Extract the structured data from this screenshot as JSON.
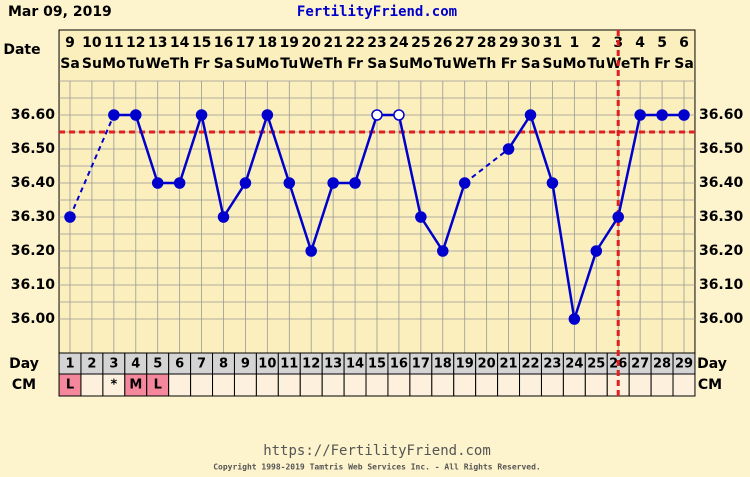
{
  "header": "Mar 09, 2019",
  "site": "FertilityFriend.com",
  "footer_url": "https://FertilityFriend.com",
  "copyright": "Copyright 1998-2019 Tamtris Web Services Inc. - All Rights Reserved.",
  "chart_data": {
    "type": "line",
    "date_label": "Date",
    "day_label": "Day",
    "cm_label": "CM",
    "dates": [
      "9",
      "10",
      "11",
      "12",
      "13",
      "14",
      "15",
      "16",
      "17",
      "18",
      "19",
      "20",
      "21",
      "22",
      "23",
      "24",
      "25",
      "26",
      "27",
      "28",
      "29",
      "30",
      "31",
      "1",
      "2",
      "3",
      "4",
      "5",
      "6"
    ],
    "weekdays": [
      "Sa",
      "Su",
      "Mo",
      "Tu",
      "We",
      "Th",
      "Fr",
      "Sa",
      "Su",
      "Mo",
      "Tu",
      "We",
      "Th",
      "Fr",
      "Sa",
      "Su",
      "Mo",
      "Tu",
      "We",
      "Th",
      "Fr",
      "Sa",
      "Su",
      "Mo",
      "Tu",
      "We",
      "Th",
      "Fr",
      "Sa"
    ],
    "days": [
      1,
      2,
      3,
      4,
      5,
      6,
      7,
      8,
      9,
      10,
      11,
      12,
      13,
      14,
      15,
      16,
      17,
      18,
      19,
      20,
      21,
      22,
      23,
      24,
      25,
      26,
      27,
      28,
      29
    ],
    "cm": [
      "L",
      null,
      "*",
      "M",
      "L",
      null,
      null,
      null,
      null,
      null,
      null,
      null,
      null,
      null,
      null,
      null,
      null,
      null,
      null,
      null,
      null,
      null,
      null,
      null,
      null,
      null,
      null,
      null,
      null
    ],
    "cm_color": "#f4879b",
    "values": [
      36.3,
      null,
      36.6,
      36.6,
      36.4,
      36.4,
      36.6,
      36.3,
      36.4,
      36.6,
      36.4,
      36.2,
      36.4,
      36.4,
      36.6,
      36.6,
      36.3,
      36.2,
      36.4,
      null,
      36.5,
      36.6,
      36.4,
      36.0,
      36.2,
      36.3,
      36.6,
      36.6,
      36.6
    ],
    "hollow": [
      false,
      false,
      false,
      false,
      false,
      false,
      false,
      false,
      false,
      false,
      false,
      false,
      false,
      false,
      true,
      true,
      false,
      false,
      false,
      false,
      false,
      false,
      false,
      false,
      false,
      false,
      false,
      false,
      false
    ],
    "color": "#0000cc",
    "coverline": 36.55,
    "ovulation_day": 26,
    "marker_color": "#e02020",
    "ylim": [
      35.9,
      36.7
    ],
    "yticks": [
      {
        "value": 36.0,
        "label": "36.00"
      },
      {
        "value": 36.1,
        "label": "36.10"
      },
      {
        "value": 36.2,
        "label": "36.20"
      },
      {
        "value": 36.3,
        "label": "36.30"
      },
      {
        "value": 36.4,
        "label": "36.40"
      },
      {
        "value": 36.5,
        "label": "36.50"
      },
      {
        "value": 36.6,
        "label": "36.60"
      }
    ],
    "grid": true
  }
}
